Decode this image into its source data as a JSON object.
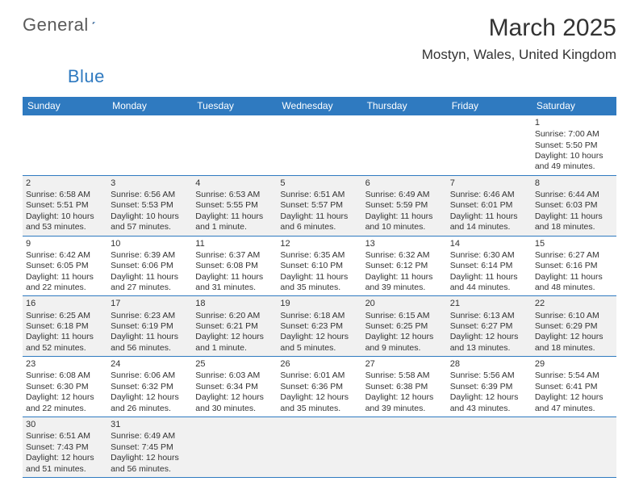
{
  "logo": {
    "text1": "General",
    "text2": "Blue"
  },
  "title": "March 2025",
  "location": "Mostyn, Wales, United Kingdom",
  "colors": {
    "header_bg": "#2f7ac0",
    "header_fg": "#ffffff",
    "rule": "#2f7ac0",
    "alt_row": "#f1f1f1",
    "text": "#333333"
  },
  "daynames": [
    "Sunday",
    "Monday",
    "Tuesday",
    "Wednesday",
    "Thursday",
    "Friday",
    "Saturday"
  ],
  "leading_blanks": 6,
  "days": [
    {
      "n": "1",
      "sunrise": "Sunrise: 7:00 AM",
      "sunset": "Sunset: 5:50 PM",
      "day1": "Daylight: 10 hours",
      "day2": "and 49 minutes."
    },
    {
      "n": "2",
      "sunrise": "Sunrise: 6:58 AM",
      "sunset": "Sunset: 5:51 PM",
      "day1": "Daylight: 10 hours",
      "day2": "and 53 minutes."
    },
    {
      "n": "3",
      "sunrise": "Sunrise: 6:56 AM",
      "sunset": "Sunset: 5:53 PM",
      "day1": "Daylight: 10 hours",
      "day2": "and 57 minutes."
    },
    {
      "n": "4",
      "sunrise": "Sunrise: 6:53 AM",
      "sunset": "Sunset: 5:55 PM",
      "day1": "Daylight: 11 hours",
      "day2": "and 1 minute."
    },
    {
      "n": "5",
      "sunrise": "Sunrise: 6:51 AM",
      "sunset": "Sunset: 5:57 PM",
      "day1": "Daylight: 11 hours",
      "day2": "and 6 minutes."
    },
    {
      "n": "6",
      "sunrise": "Sunrise: 6:49 AM",
      "sunset": "Sunset: 5:59 PM",
      "day1": "Daylight: 11 hours",
      "day2": "and 10 minutes."
    },
    {
      "n": "7",
      "sunrise": "Sunrise: 6:46 AM",
      "sunset": "Sunset: 6:01 PM",
      "day1": "Daylight: 11 hours",
      "day2": "and 14 minutes."
    },
    {
      "n": "8",
      "sunrise": "Sunrise: 6:44 AM",
      "sunset": "Sunset: 6:03 PM",
      "day1": "Daylight: 11 hours",
      "day2": "and 18 minutes."
    },
    {
      "n": "9",
      "sunrise": "Sunrise: 6:42 AM",
      "sunset": "Sunset: 6:05 PM",
      "day1": "Daylight: 11 hours",
      "day2": "and 22 minutes."
    },
    {
      "n": "10",
      "sunrise": "Sunrise: 6:39 AM",
      "sunset": "Sunset: 6:06 PM",
      "day1": "Daylight: 11 hours",
      "day2": "and 27 minutes."
    },
    {
      "n": "11",
      "sunrise": "Sunrise: 6:37 AM",
      "sunset": "Sunset: 6:08 PM",
      "day1": "Daylight: 11 hours",
      "day2": "and 31 minutes."
    },
    {
      "n": "12",
      "sunrise": "Sunrise: 6:35 AM",
      "sunset": "Sunset: 6:10 PM",
      "day1": "Daylight: 11 hours",
      "day2": "and 35 minutes."
    },
    {
      "n": "13",
      "sunrise": "Sunrise: 6:32 AM",
      "sunset": "Sunset: 6:12 PM",
      "day1": "Daylight: 11 hours",
      "day2": "and 39 minutes."
    },
    {
      "n": "14",
      "sunrise": "Sunrise: 6:30 AM",
      "sunset": "Sunset: 6:14 PM",
      "day1": "Daylight: 11 hours",
      "day2": "and 44 minutes."
    },
    {
      "n": "15",
      "sunrise": "Sunrise: 6:27 AM",
      "sunset": "Sunset: 6:16 PM",
      "day1": "Daylight: 11 hours",
      "day2": "and 48 minutes."
    },
    {
      "n": "16",
      "sunrise": "Sunrise: 6:25 AM",
      "sunset": "Sunset: 6:18 PM",
      "day1": "Daylight: 11 hours",
      "day2": "and 52 minutes."
    },
    {
      "n": "17",
      "sunrise": "Sunrise: 6:23 AM",
      "sunset": "Sunset: 6:19 PM",
      "day1": "Daylight: 11 hours",
      "day2": "and 56 minutes."
    },
    {
      "n": "18",
      "sunrise": "Sunrise: 6:20 AM",
      "sunset": "Sunset: 6:21 PM",
      "day1": "Daylight: 12 hours",
      "day2": "and 1 minute."
    },
    {
      "n": "19",
      "sunrise": "Sunrise: 6:18 AM",
      "sunset": "Sunset: 6:23 PM",
      "day1": "Daylight: 12 hours",
      "day2": "and 5 minutes."
    },
    {
      "n": "20",
      "sunrise": "Sunrise: 6:15 AM",
      "sunset": "Sunset: 6:25 PM",
      "day1": "Daylight: 12 hours",
      "day2": "and 9 minutes."
    },
    {
      "n": "21",
      "sunrise": "Sunrise: 6:13 AM",
      "sunset": "Sunset: 6:27 PM",
      "day1": "Daylight: 12 hours",
      "day2": "and 13 minutes."
    },
    {
      "n": "22",
      "sunrise": "Sunrise: 6:10 AM",
      "sunset": "Sunset: 6:29 PM",
      "day1": "Daylight: 12 hours",
      "day2": "and 18 minutes."
    },
    {
      "n": "23",
      "sunrise": "Sunrise: 6:08 AM",
      "sunset": "Sunset: 6:30 PM",
      "day1": "Daylight: 12 hours",
      "day2": "and 22 minutes."
    },
    {
      "n": "24",
      "sunrise": "Sunrise: 6:06 AM",
      "sunset": "Sunset: 6:32 PM",
      "day1": "Daylight: 12 hours",
      "day2": "and 26 minutes."
    },
    {
      "n": "25",
      "sunrise": "Sunrise: 6:03 AM",
      "sunset": "Sunset: 6:34 PM",
      "day1": "Daylight: 12 hours",
      "day2": "and 30 minutes."
    },
    {
      "n": "26",
      "sunrise": "Sunrise: 6:01 AM",
      "sunset": "Sunset: 6:36 PM",
      "day1": "Daylight: 12 hours",
      "day2": "and 35 minutes."
    },
    {
      "n": "27",
      "sunrise": "Sunrise: 5:58 AM",
      "sunset": "Sunset: 6:38 PM",
      "day1": "Daylight: 12 hours",
      "day2": "and 39 minutes."
    },
    {
      "n": "28",
      "sunrise": "Sunrise: 5:56 AM",
      "sunset": "Sunset: 6:39 PM",
      "day1": "Daylight: 12 hours",
      "day2": "and 43 minutes."
    },
    {
      "n": "29",
      "sunrise": "Sunrise: 5:54 AM",
      "sunset": "Sunset: 6:41 PM",
      "day1": "Daylight: 12 hours",
      "day2": "and 47 minutes."
    },
    {
      "n": "30",
      "sunrise": "Sunrise: 6:51 AM",
      "sunset": "Sunset: 7:43 PM",
      "day1": "Daylight: 12 hours",
      "day2": "and 51 minutes."
    },
    {
      "n": "31",
      "sunrise": "Sunrise: 6:49 AM",
      "sunset": "Sunset: 7:45 PM",
      "day1": "Daylight: 12 hours",
      "day2": "and 56 minutes."
    }
  ]
}
